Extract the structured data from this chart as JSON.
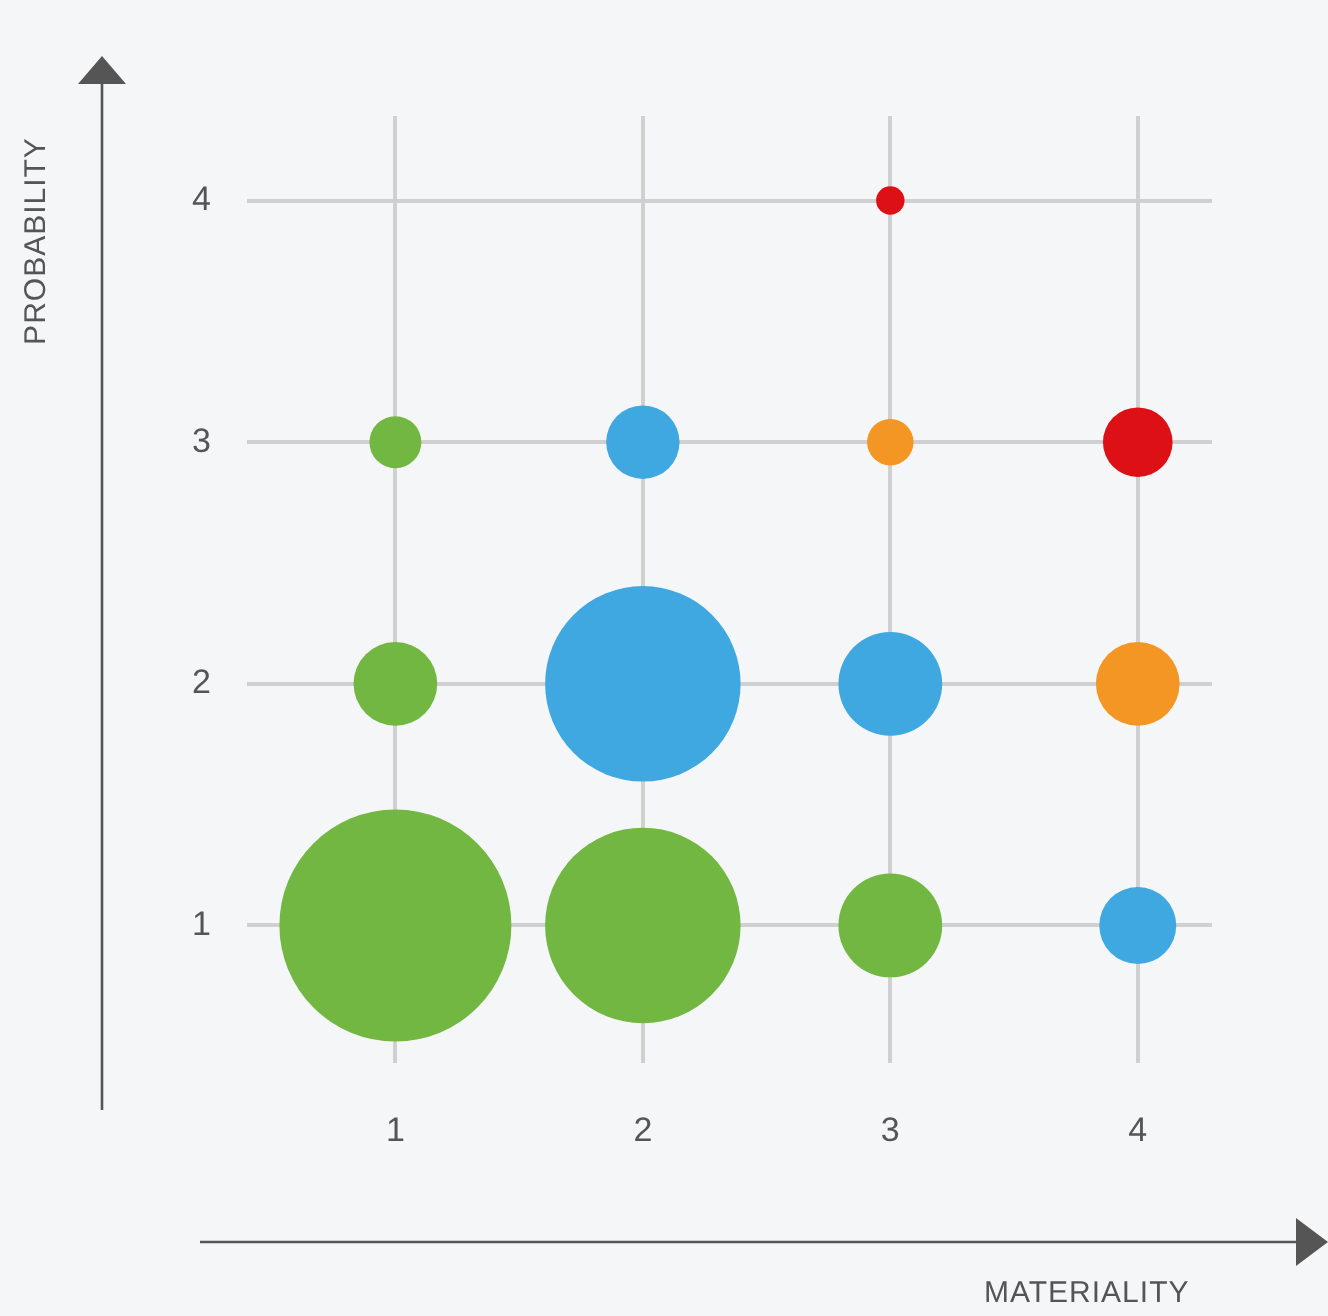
{
  "chart_data": {
    "type": "bubble",
    "xlabel": "MATERIALITY",
    "ylabel": "PROBABILITY",
    "x": [
      1,
      2,
      3,
      4,
      1,
      2,
      3,
      4,
      1,
      2,
      3,
      4,
      3
    ],
    "values": [
      1,
      1,
      1,
      1,
      2,
      2,
      2,
      2,
      3,
      3,
      3,
      3,
      4
    ],
    "sizes": [
      1,
      0.71,
      0.2,
      0.11,
      0.13,
      0.71,
      0.2,
      0.13,
      0.05,
      0.1,
      0.04,
      0.09,
      0.015
    ],
    "colors": [
      "#72b741",
      "#72b741",
      "#72b741",
      "#3fa8e0",
      "#72b741",
      "#3fa8e0",
      "#3fa8e0",
      "#f39623",
      "#72b741",
      "#3fa8e0",
      "#f39623",
      "#dd1016",
      "#dd1016"
    ],
    "xlim": [
      0.4,
      4.3
    ],
    "ylim": [
      0.43,
      4.35
    ],
    "xticks": [
      1,
      2,
      3,
      4
    ],
    "yticks": [
      1,
      2,
      3,
      4
    ],
    "grid": true,
    "legend": false
  }
}
